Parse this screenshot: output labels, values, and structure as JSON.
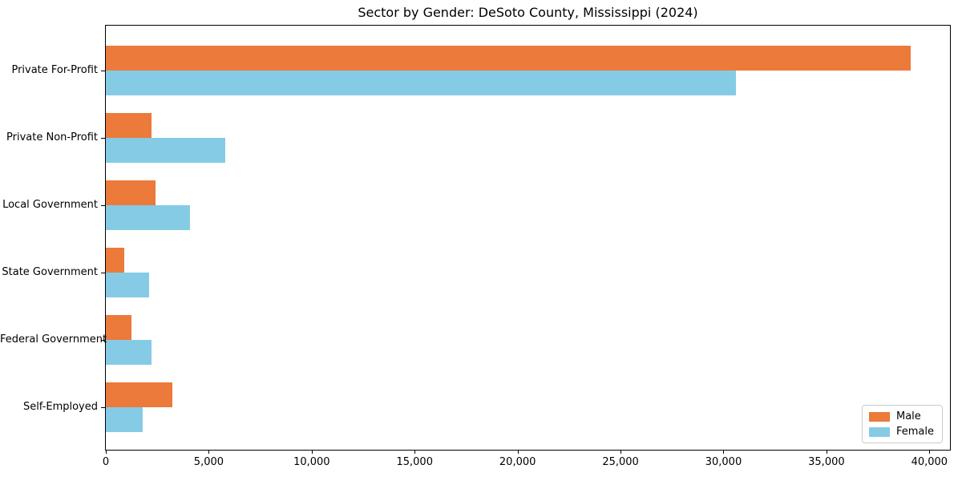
{
  "chart_data": {
    "type": "bar",
    "orientation": "horizontal",
    "title": "Sector by Gender: DeSoto County, Mississippi (2024)",
    "categories": [
      "Private For-Profit",
      "Private Non-Profit",
      "Local Government",
      "State Government",
      "Federal Government",
      "Self-Employed"
    ],
    "series": [
      {
        "name": "Male",
        "color": "#EB7A3B",
        "values": [
          39100,
          2200,
          2400,
          900,
          1250,
          3250
        ]
      },
      {
        "name": "Female",
        "color": "#85CBE5",
        "values": [
          30600,
          5800,
          4100,
          2100,
          2200,
          1800
        ]
      }
    ],
    "xlabel": "",
    "ylabel": "",
    "xlim": [
      0,
      41000
    ],
    "xticks": [
      0,
      5000,
      10000,
      15000,
      20000,
      25000,
      30000,
      35000,
      40000
    ],
    "xtick_labels": [
      "0",
      "5,000",
      "10,000",
      "15,000",
      "20,000",
      "25,000",
      "30,000",
      "35,000",
      "40,000"
    ],
    "grid": false,
    "legend_position": "lower right"
  }
}
